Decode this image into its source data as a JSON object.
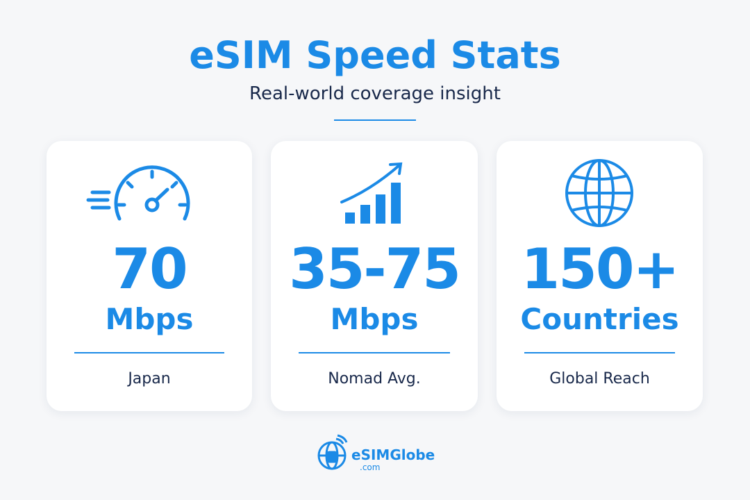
{
  "header": {
    "title": "eSIM Speed Stats",
    "subtitle": "Real-world coverage insight"
  },
  "cards": [
    {
      "value": "70",
      "unit": "Mbps",
      "label": "Japan"
    },
    {
      "value": "35-75",
      "unit": "Mbps",
      "label": "Nomad Avg."
    },
    {
      "value": "150+",
      "unit": "Countries",
      "label": "Global Reach"
    }
  ],
  "footer": {
    "brand": "eSIMGlobe",
    "domain": ".com"
  }
}
